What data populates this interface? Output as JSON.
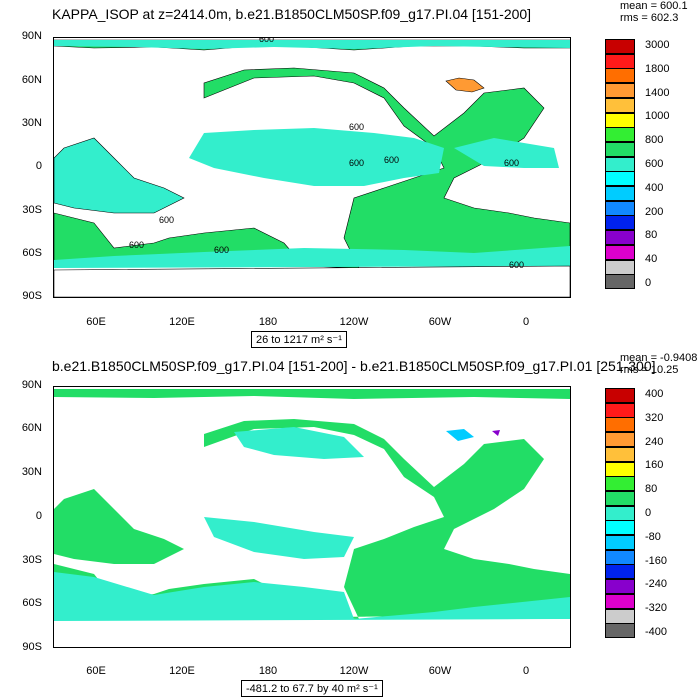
{
  "chart_data": [
    {
      "type": "heatmap",
      "title": "KAPPA_ISOP at z=2414.0m, b.e21.B1850CLM50SP.f09_g17.PI.04 [151-200]",
      "stats": {
        "mean": "mean = 600.1",
        "rms": "rms = 602.3"
      },
      "yticks": [
        "90N",
        "60N",
        "30N",
        "0",
        "30S",
        "60S",
        "90S"
      ],
      "xticks": [
        "60E",
        "120E",
        "180",
        "120W",
        "60W",
        "0"
      ],
      "range_label": "26 to 1217 m² s⁻¹",
      "colorbar": [
        "3000",
        "1800",
        "1400",
        "1000",
        "800",
        "600",
        "400",
        "200",
        "80",
        "40",
        "0"
      ],
      "colorbar_colors": [
        "#c80000",
        "#ff1a1a",
        "#ff6e00",
        "#ff9a33",
        "#ffc03a",
        "#ffff00",
        "#33ee33",
        "#22dd66",
        "#33eecc",
        "#00ffff",
        "#00ccff",
        "#1188ff",
        "#0022ee",
        "#8800cc",
        "#dd00cc",
        "#cccccc",
        "#666666"
      ],
      "contour_labels": [
        "600",
        "600",
        "600",
        "600",
        "600",
        "600",
        "600",
        "600",
        "600"
      ]
    },
    {
      "type": "heatmap",
      "title": "b.e21.B1850CLM50SP.f09_g17.PI.04 [151-200] - b.e21.B1850CLM50SP.f09_g17.PI.01 [251-300]",
      "stats": {
        "mean": "mean = -0.9408",
        "rms": "rms = 10.25"
      },
      "yticks": [
        "90N",
        "60N",
        "30N",
        "0",
        "30S",
        "60S",
        "90S"
      ],
      "xticks": [
        "60E",
        "120E",
        "180",
        "120W",
        "60W",
        "0"
      ],
      "range_label": "-481.2 to 67.7 by 40 m² s⁻¹",
      "colorbar": [
        "400",
        "320",
        "240",
        "160",
        "80",
        "0",
        "-80",
        "-160",
        "-240",
        "-320",
        "-400"
      ],
      "colorbar_colors": [
        "#c80000",
        "#ff1a1a",
        "#ff6e00",
        "#ff9a33",
        "#ffc03a",
        "#ffff00",
        "#33ee33",
        "#22dd66",
        "#33eecc",
        "#00ffff",
        "#00ccff",
        "#1188ff",
        "#0022ee",
        "#8800cc",
        "#dd00cc",
        "#cccccc",
        "#666666"
      ]
    }
  ]
}
